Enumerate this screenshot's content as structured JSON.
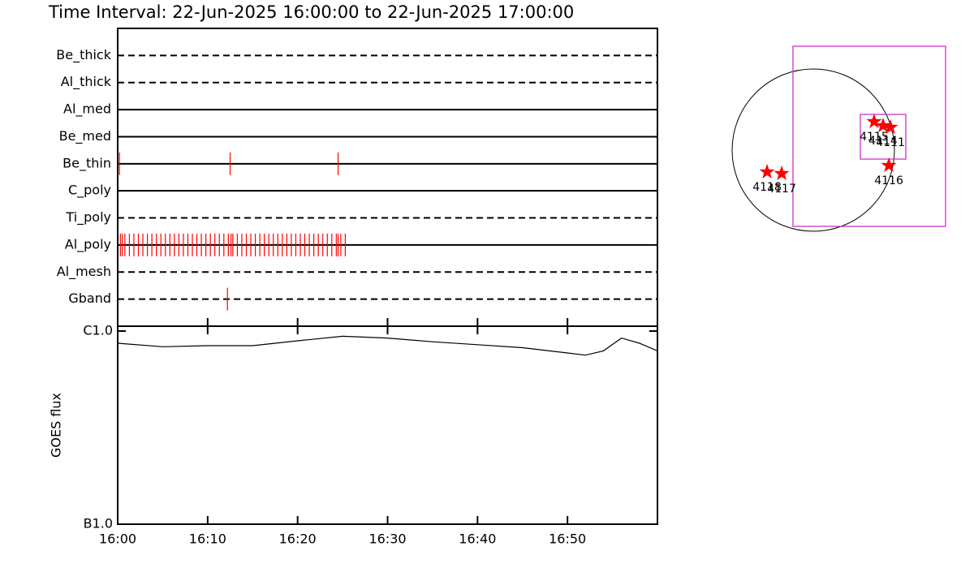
{
  "chart_data": [
    {
      "type": "event",
      "title": "Time Interval: 22-Jun-2025 16:00:00 to 22-Jun-2025 17:00:00",
      "categories": [
        "Be_thick",
        "Al_thick",
        "Al_med",
        "Be_med",
        "Be_thin",
        "C_poly",
        "Ti_poly",
        "Al_poly",
        "Al_mesh",
        "Gband"
      ],
      "line_styles": [
        "dashed",
        "dashed",
        "solid",
        "solid",
        "solid",
        "solid",
        "dashed",
        "solid",
        "dashed",
        "dashed"
      ],
      "events": [
        [],
        [],
        [],
        [],
        [
          0.2,
          12.5,
          24.5
        ],
        [],
        [],
        [
          0.3,
          0.5,
          0.8,
          1.3,
          1.8,
          2.3,
          2.8,
          3.3,
          3.8,
          4.3,
          4.8,
          5.3,
          5.8,
          6.3,
          6.8,
          7.3,
          7.8,
          8.3,
          8.8,
          9.3,
          9.8,
          10.3,
          10.8,
          11.3,
          11.8,
          12.3,
          12.6,
          12.8,
          13.3,
          13.8,
          14.3,
          14.8,
          15.3,
          15.8,
          16.3,
          16.8,
          17.3,
          17.8,
          18.3,
          18.8,
          19.3,
          19.8,
          20.3,
          20.8,
          21.3,
          21.8,
          22.3,
          22.8,
          23.3,
          23.8,
          24.3,
          24.5,
          24.8,
          25.3
        ],
        [],
        [
          12.2
        ]
      ],
      "color": "#ff0000",
      "xlim": [
        0,
        60
      ]
    },
    {
      "type": "line",
      "ylabel": "GOES flux",
      "x": [
        0,
        5,
        10,
        15,
        20,
        25,
        30,
        35,
        40,
        45,
        50,
        52,
        54,
        56,
        58,
        60
      ],
      "values": [
        8.65e-07,
        8.3e-07,
        8.4e-07,
        8.4e-07,
        8.9e-07,
        9.4e-07,
        9.2e-07,
        8.8e-07,
        8.5e-07,
        8.2e-07,
        7.7e-07,
        7.5e-07,
        7.9e-07,
        9.2e-07,
        8.65e-07,
        7.9e-07
      ],
      "color": "#000000",
      "log_y": true,
      "ylim": [
        1e-07,
        1e-06
      ],
      "yticks": [
        {
          "value": 1e-07,
          "label": "B1.0"
        },
        {
          "value": 1e-06,
          "label": "C1.0"
        }
      ],
      "xlim": [
        0,
        60
      ],
      "xticks": [
        {
          "value": 0,
          "label": "16:00"
        },
        {
          "value": 10,
          "label": "16:10"
        },
        {
          "value": 20,
          "label": "16:20"
        },
        {
          "value": 30,
          "label": "16:30"
        },
        {
          "value": 40,
          "label": "16:40"
        },
        {
          "value": 50,
          "label": "16:50"
        }
      ]
    },
    {
      "type": "map",
      "disk_radius": 950,
      "fov_boxes": [
        [
          -238,
          1548,
          -893,
          1216
        ],
        [
          551,
          1083,
          -105,
          418
        ]
      ],
      "box_color": "#cc33cc",
      "labels": [
        "4118",
        "4117",
        "4115",
        "4114",
        "4111",
        "4116"
      ],
      "x": [
        -541,
        -370,
        712,
        817,
        903,
        884
      ],
      "y": [
        -256,
        -275,
        333,
        285,
        266,
        -180
      ],
      "color": "#ff0000"
    }
  ]
}
